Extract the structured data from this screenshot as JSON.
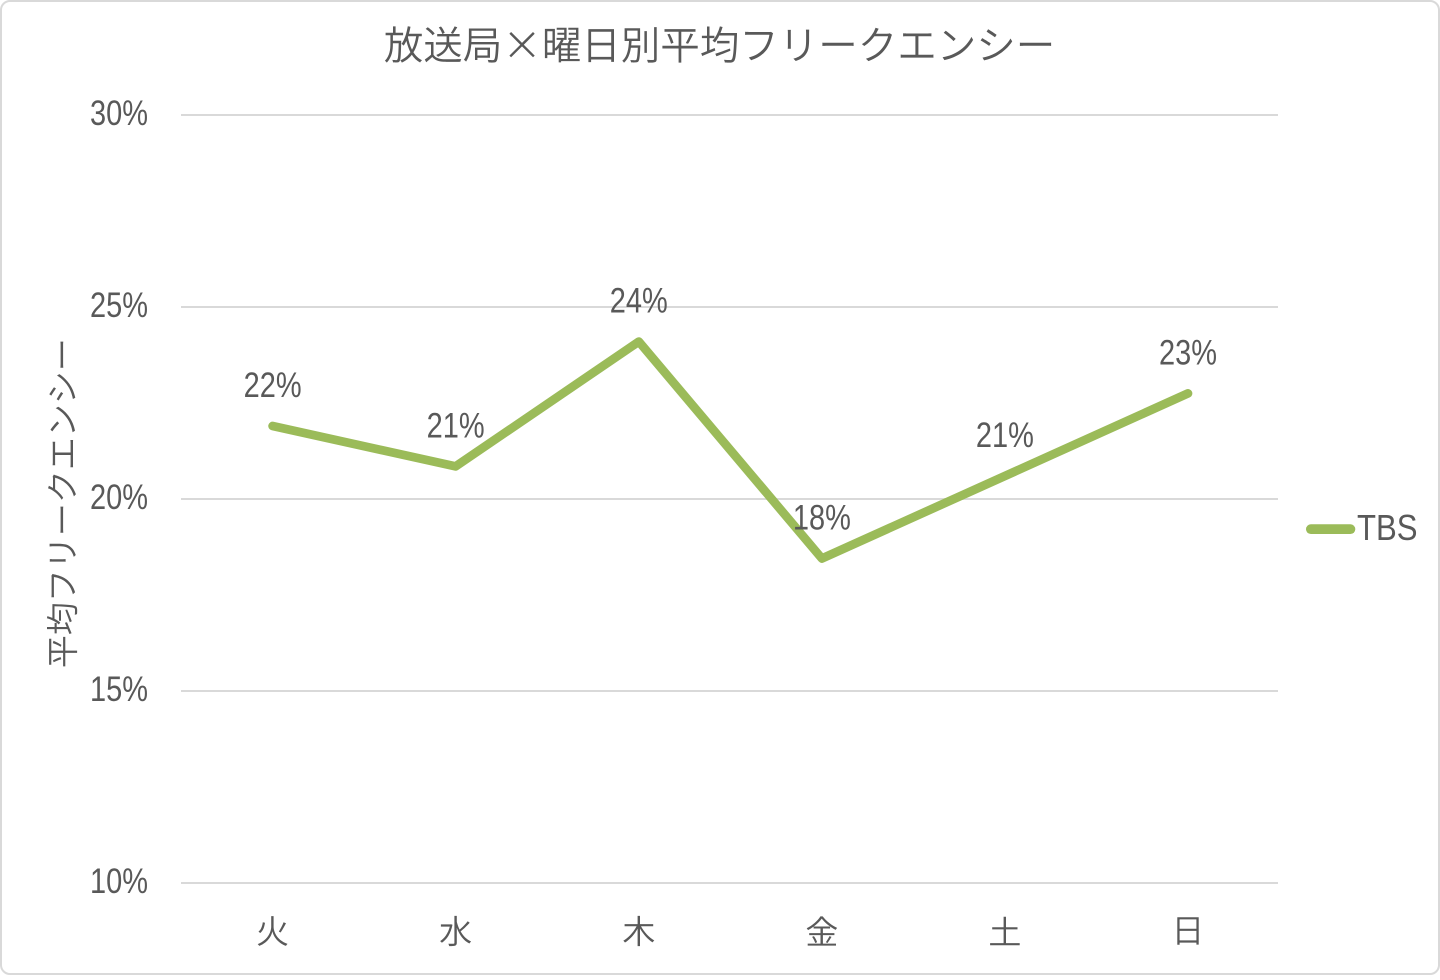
{
  "chart_data": {
    "type": "line",
    "title": "放送局×曜日別平均フリークエンシー",
    "xlabel": "",
    "ylabel": "平均フリークエンシー",
    "categories": [
      "火",
      "水",
      "木",
      "金",
      "土",
      "日"
    ],
    "series": [
      {
        "name": "TBS",
        "color": "#9BBB59",
        "values": [
          21.9,
          20.85,
          24.1,
          18.45,
          20.6,
          22.75
        ],
        "point_labels": [
          "22%",
          "21%",
          "24%",
          "18%",
          "21%",
          "23%"
        ]
      }
    ],
    "ylim": [
      10,
      30
    ],
    "ytick_step": 5,
    "ytick_labels": [
      "30%",
      "25%",
      "20%",
      "15%",
      "10%"
    ],
    "yaxis_format": "percent",
    "grid": true,
    "legend": {
      "position": "right",
      "entries": [
        "TBS"
      ]
    }
  },
  "colors": {
    "series_line": "#9BBB59",
    "text": "#595959",
    "gridline": "#D9D9D9",
    "chart_border": "#D9D9D9",
    "background": "#FFFFFF"
  }
}
